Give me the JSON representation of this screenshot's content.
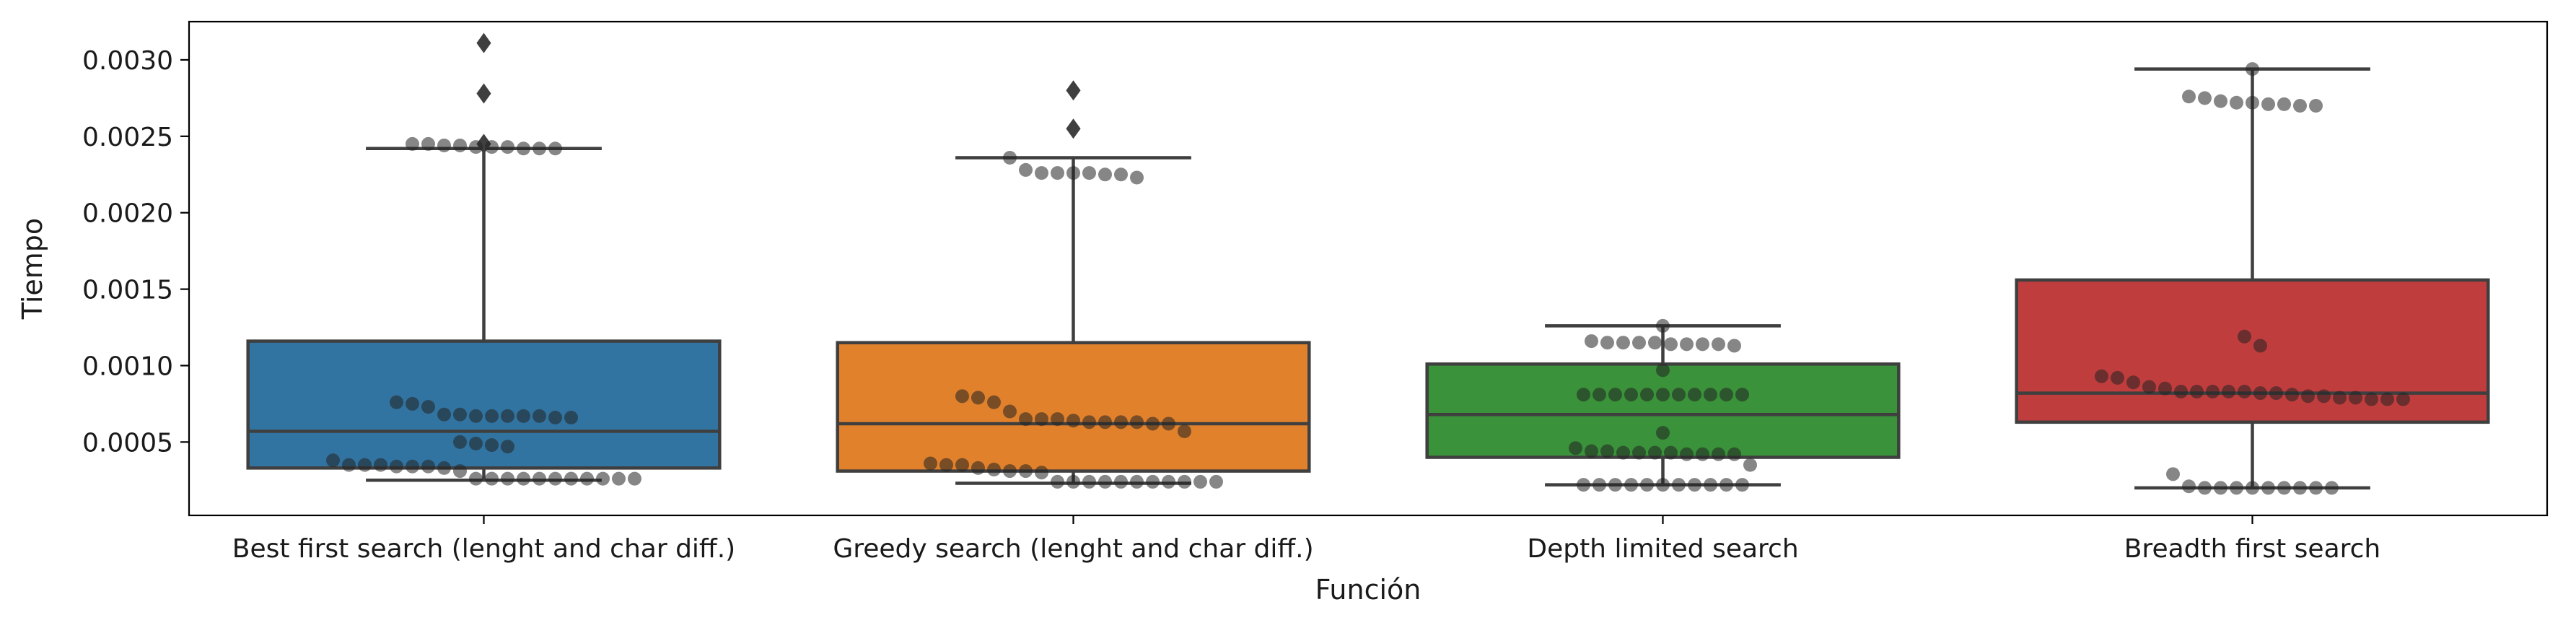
{
  "chart_data": {
    "type": "box",
    "xlabel": "Función",
    "ylabel": "Tiempo",
    "ylim": [
      2e-05,
      0.00325
    ],
    "yticks": [
      0.0005,
      0.001,
      0.0015,
      0.002,
      0.0025,
      0.003
    ],
    "ytick_labels": [
      "0.0005",
      "0.0010",
      "0.0015",
      "0.0020",
      "0.0025",
      "0.0030"
    ],
    "grid": false,
    "legend": "none",
    "categories": [
      "Best first search (lenght and char diff.)",
      "Greedy search (lenght and char diff.)",
      "Depth limited search",
      "Breadth first search"
    ],
    "colors": [
      "#3274a1",
      "#e1812c",
      "#3a923a",
      "#c03d3e"
    ],
    "box_edge_color": "#3f3f3f",
    "point_color": "#222222",
    "boxes": [
      {
        "q1": 0.00033,
        "median": 0.00057,
        "q3": 0.00116,
        "whisker_low": 0.00025,
        "whisker_high": 0.00242,
        "fliers": [
          0.00245,
          0.00278,
          0.00311
        ],
        "points": [
          0.00242,
          0.00242,
          0.00242,
          0.00243,
          0.00243,
          0.00243,
          0.00244,
          0.00244,
          0.00245,
          0.00245,
          0.00068,
          0.00067,
          0.00066,
          0.00066,
          0.00067,
          0.00075,
          0.00076,
          0.00073,
          0.00067,
          0.00067,
          0.00067,
          0.00068,
          0.00048,
          0.00049,
          0.00047,
          0.0005,
          0.00031,
          0.00035,
          0.00034,
          0.00033,
          0.00034,
          0.00035,
          0.00034,
          0.00038,
          0.00035,
          0.00026,
          0.00026,
          0.00026,
          0.00026,
          0.00026,
          0.00026,
          0.00026,
          0.00026,
          0.00026,
          0.00026,
          0.00026
        ]
      },
      {
        "q1": 0.00031,
        "median": 0.00062,
        "q3": 0.00115,
        "whisker_low": 0.00023,
        "whisker_high": 0.00236,
        "fliers": [
          0.00255,
          0.0028
        ],
        "points": [
          0.00228,
          0.00226,
          0.00225,
          0.00223,
          0.00225,
          0.00236,
          0.00226,
          0.00226,
          0.00226,
          0.00065,
          0.00065,
          0.00063,
          0.00062,
          0.00062,
          0.00079,
          0.0008,
          0.00076,
          0.0007,
          0.00064,
          0.00063,
          0.00063,
          0.00063,
          0.00065,
          0.00057,
          0.00033,
          0.00031,
          0.0003,
          0.00035,
          0.00031,
          0.00035,
          0.00036,
          0.00032,
          0.00024,
          0.00024,
          0.00024,
          0.00024,
          0.00024,
          0.00024,
          0.00024,
          0.00024,
          0.00024,
          0.00024,
          0.00024
        ]
      },
      {
        "q1": 0.0004,
        "median": 0.00068,
        "q3": 0.00101,
        "whisker_low": 0.00022,
        "whisker_high": 0.00126,
        "fliers": [],
        "points": [
          0.00115,
          0.00115,
          0.00114,
          0.00114,
          0.00113,
          0.00114,
          0.00126,
          0.00114,
          0.00115,
          0.00115,
          0.00116,
          0.00081,
          0.00081,
          0.00081,
          0.00081,
          0.00081,
          0.00081,
          0.00097,
          0.00081,
          0.00081,
          0.00081,
          0.00081,
          0.00081,
          0.00056,
          0.00044,
          0.00043,
          0.00042,
          0.00042,
          0.00043,
          0.00043,
          0.00035,
          0.00042,
          0.00042,
          0.00043,
          0.00044,
          0.00046,
          0.00022,
          0.00022,
          0.00022,
          0.00022,
          0.00022,
          0.00022,
          0.00022,
          0.00022,
          0.00022,
          0.00022,
          0.00022
        ]
      },
      {
        "q1": 0.00063,
        "median": 0.00082,
        "q3": 0.00156,
        "whisker_low": 0.0002,
        "whisker_high": 0.00294,
        "fliers": [],
        "points": [
          0.00275,
          0.00273,
          0.00271,
          0.0027,
          0.0027,
          0.00294,
          0.00271,
          0.00272,
          0.00272,
          0.00276,
          0.00119,
          0.00113,
          0.00093,
          0.00089,
          0.00086,
          0.00085,
          0.00092,
          0.00083,
          0.00083,
          0.00082,
          0.0008,
          0.00078,
          0.00079,
          0.00078,
          0.00078,
          0.00079,
          0.0008,
          0.00081,
          0.00082,
          0.00083,
          0.00083,
          0.00083,
          0.00029,
          0.00021,
          0.0002,
          0.0002,
          0.0002,
          0.0002,
          0.0002,
          0.0002,
          0.0002,
          0.0002,
          0.0002
        ]
      }
    ]
  }
}
